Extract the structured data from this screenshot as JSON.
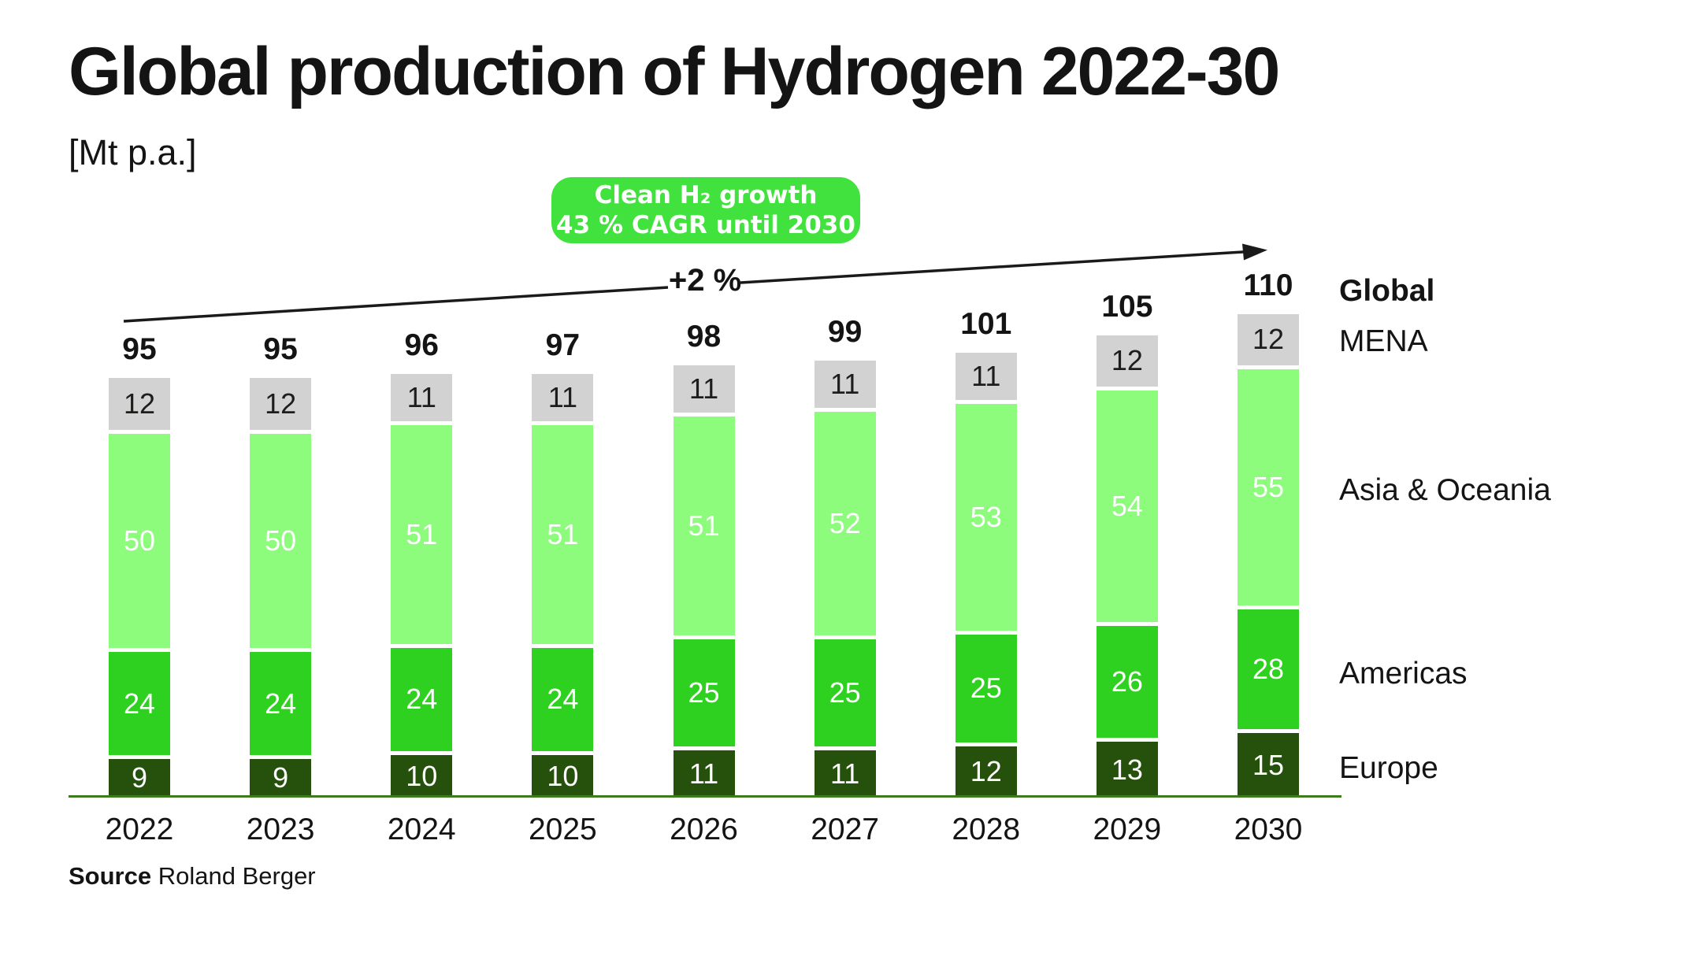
{
  "header": {
    "title": "Global production of Hydrogen 2022-30",
    "unit": "[Mt p.a.]"
  },
  "badge": {
    "line1": "Clean H₂ growth",
    "line2": "43 % CAGR until 2030",
    "color": "#41E23E"
  },
  "arrow": {
    "label": "+2 %",
    "color": "#1a1a1a"
  },
  "legend": {
    "global": "Global",
    "mena": "MENA",
    "asia": "Asia & Oceania",
    "americas": "Americas",
    "europe": "Europe"
  },
  "source": {
    "label": "Source",
    "text": "Roland Berger"
  },
  "colors": {
    "axis_line": "#3C7C1E",
    "text_dark": "#141414",
    "separator": "#ffffff"
  },
  "chart_data": {
    "type": "bar",
    "subtype": "stacked",
    "title": "Global production of Hydrogen 2022-30",
    "ylabel": "Mt p.a.",
    "categories": [
      "2022",
      "2023",
      "2024",
      "2025",
      "2026",
      "2027",
      "2028",
      "2029",
      "2030"
    ],
    "series": [
      {
        "name": "Europe",
        "color": "#26510D",
        "label_color": "#ffffff",
        "values": [
          9,
          9,
          10,
          10,
          11,
          11,
          12,
          13,
          15
        ]
      },
      {
        "name": "Americas",
        "color": "#2ED11F",
        "label_color": "#ffffff",
        "values": [
          24,
          24,
          24,
          24,
          25,
          25,
          25,
          26,
          28
        ]
      },
      {
        "name": "Asia & Oceania",
        "color": "#8DFB7C",
        "label_color": "#ffffff",
        "values": [
          50,
          50,
          51,
          51,
          51,
          52,
          53,
          54,
          55
        ]
      },
      {
        "name": "MENA",
        "color": "#D2D2D2",
        "label_color": "#1d1d1b",
        "values": [
          12,
          12,
          11,
          11,
          11,
          11,
          11,
          12,
          12
        ]
      }
    ],
    "totals": [
      95,
      95,
      96,
      97,
      98,
      99,
      101,
      105,
      110
    ],
    "annotation": "+2 % growth arrow from 2022 to 2030",
    "legend_position": "right",
    "grid": false
  }
}
